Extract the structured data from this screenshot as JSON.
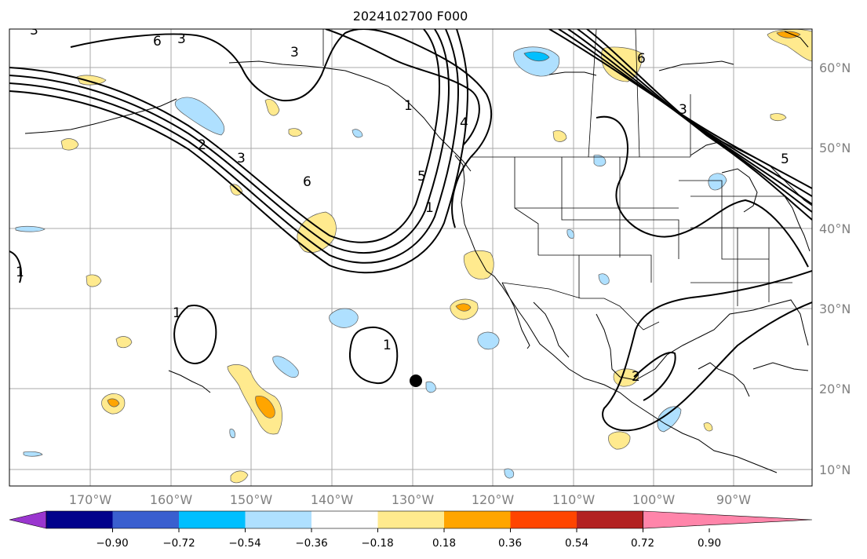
{
  "title": "2024102700 F000",
  "map": {
    "lat_labels": [
      "60°N",
      "50°N",
      "40°N",
      "30°N",
      "20°N",
      "10°N"
    ],
    "lon_labels": [
      "170°W",
      "160°W",
      "150°W",
      "140°W",
      "130°W",
      "120°W",
      "110°W",
      "100°W",
      "90°W"
    ],
    "contour_labels": [
      "3",
      "2",
      "3",
      "6",
      "5",
      "1",
      "3",
      "6",
      "3",
      "5",
      "4",
      "1",
      "2",
      "6",
      "1",
      "3",
      "1",
      "1"
    ],
    "marker": "black-dot"
  },
  "colorbar": {
    "tick_labels": [
      "−0.90",
      "−0.72",
      "−0.54",
      "−0.36",
      "−0.18",
      "0.18",
      "0.36",
      "0.54",
      "0.72",
      "0.90"
    ],
    "colors": [
      "#9a36cf",
      "#02028b",
      "#3a5fcf",
      "#00bfff",
      "#afe0ff",
      "#ffffff",
      "#ffea8e",
      "#ffa500",
      "#ff4500",
      "#b22222",
      "#ff85aa"
    ],
    "extend": "both"
  }
}
